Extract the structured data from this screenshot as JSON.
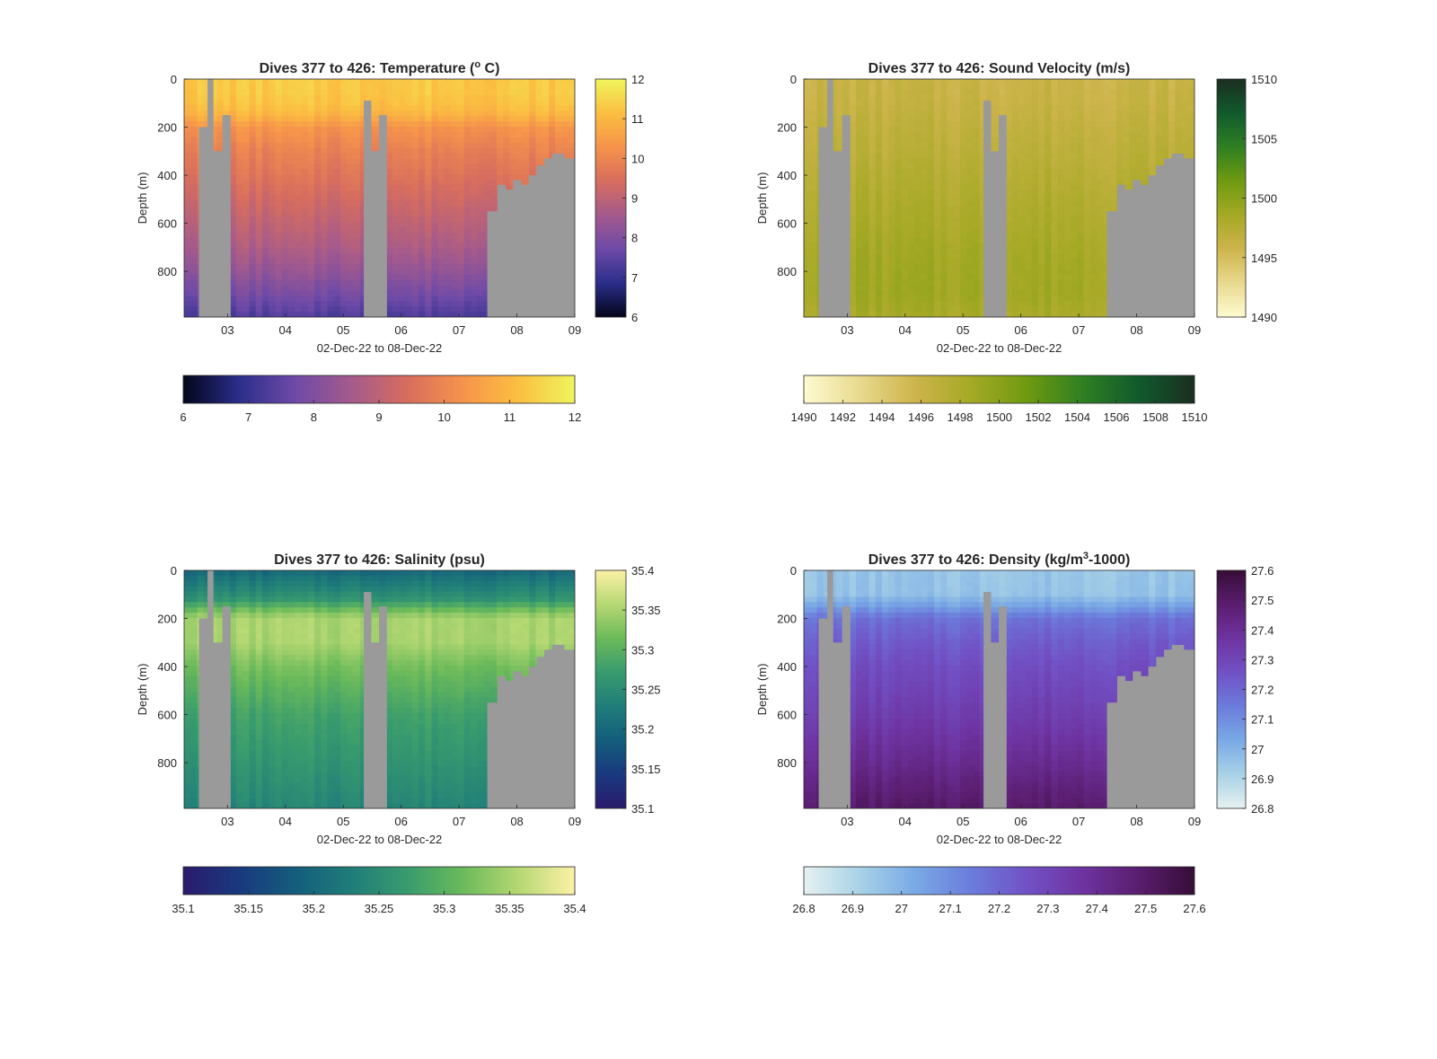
{
  "figure": {
    "background": "#ffffff",
    "mask_color": "#9a9a9a"
  },
  "chart_data": [
    {
      "type": "heatmap",
      "title": "Dives 377 to 426: Temperature (° C)",
      "title_parts": [
        "Dives 377 to 426: Temperature (",
        "o",
        " C)"
      ],
      "xlabel": "02-Dec-22 to 08-Dec-22",
      "ylabel": "Depth (m)",
      "xticks": [
        "03",
        "04",
        "05",
        "06",
        "07",
        "08",
        "09"
      ],
      "xlim_days": [
        2.25,
        9.0
      ],
      "yticks": [
        "0",
        "200",
        "400",
        "600",
        "800"
      ],
      "ylim": [
        0,
        990
      ],
      "y_reversed": true,
      "colormap": "thermal",
      "colormap_stops": [
        "#03051a",
        "#2b2e8a",
        "#6e4aa8",
        "#a45a8c",
        "#d76d5e",
        "#f6934b",
        "#fbbf41",
        "#eff55c"
      ],
      "clim": [
        6,
        12
      ],
      "colorbar_ticks": [
        "6",
        "7",
        "8",
        "9",
        "10",
        "11",
        "12"
      ],
      "horizontal_ticks": [
        "6",
        "7",
        "8",
        "9",
        "10",
        "11",
        "12"
      ],
      "profile": {
        "depths": [
          0,
          50,
          100,
          140,
          170,
          200,
          300,
          400,
          500,
          600,
          700,
          800,
          900,
          990
        ],
        "values": [
          11.3,
          11.3,
          11.2,
          11.0,
          10.7,
          10.3,
          9.9,
          9.6,
          9.3,
          9.0,
          8.7,
          8.3,
          7.8,
          7.3
        ]
      }
    },
    {
      "type": "heatmap",
      "title": "Dives 377 to 426: Sound Velocity (m/s)",
      "xlabel": "02-Dec-22 to 08-Dec-22",
      "ylabel": "Depth (m)",
      "xticks": [
        "03",
        "04",
        "05",
        "06",
        "07",
        "08",
        "09"
      ],
      "xlim_days": [
        2.25,
        9.0
      ],
      "yticks": [
        "0",
        "200",
        "400",
        "600",
        "800"
      ],
      "ylim": [
        0,
        990
      ],
      "y_reversed": true,
      "colormap": "speed",
      "colormap_stops": [
        "#fefbd1",
        "#e8d98e",
        "#cdb44b",
        "#a5a925",
        "#6e9a10",
        "#2f7f22",
        "#115a2d",
        "#1a2e20"
      ],
      "clim": [
        1490,
        1510
      ],
      "colorbar_ticks": [
        "1490",
        "1495",
        "1500",
        "1505",
        "1510"
      ],
      "horizontal_ticks": [
        "1490",
        "1492",
        "1494",
        "1496",
        "1498",
        "1500",
        "1502",
        "1504",
        "1506",
        "1508",
        "1510"
      ],
      "profile": {
        "depths": [
          0,
          100,
          200,
          300,
          400,
          500,
          600,
          700,
          800,
          900,
          990
        ],
        "values": [
          1496.0,
          1496.2,
          1496.6,
          1497.0,
          1497.4,
          1497.8,
          1498.1,
          1498.5,
          1498.7,
          1498.8,
          1498.2
        ]
      }
    },
    {
      "type": "heatmap",
      "title": "Dives 377 to 426: Salinity (psu)",
      "xlabel": "02-Dec-22 to 08-Dec-22",
      "ylabel": "Depth (m)",
      "xticks": [
        "03",
        "04",
        "05",
        "06",
        "07",
        "08",
        "09"
      ],
      "xlim_days": [
        2.25,
        9.0
      ],
      "yticks": [
        "0",
        "200",
        "400",
        "600",
        "800"
      ],
      "ylim": [
        0,
        990
      ],
      "y_reversed": true,
      "colormap": "haline",
      "colormap_stops": [
        "#2a1a6c",
        "#19397e",
        "#145d7c",
        "#1f7d79",
        "#389b6e",
        "#6bba5a",
        "#b6d873",
        "#fdf1a6"
      ],
      "clim": [
        35.1,
        35.4
      ],
      "colorbar_ticks": [
        "35.1",
        "35.15",
        "35.2",
        "35.25",
        "35.3",
        "35.35",
        "35.4"
      ],
      "horizontal_ticks": [
        "35.1",
        "35.15",
        "35.2",
        "35.25",
        "35.3",
        "35.35",
        "35.4"
      ],
      "profile": {
        "depths": [
          0,
          60,
          120,
          160,
          200,
          300,
          400,
          500,
          600,
          700,
          800,
          900,
          990
        ],
        "values": [
          35.2,
          35.23,
          35.26,
          35.31,
          35.35,
          35.35,
          35.32,
          35.3,
          35.28,
          35.27,
          35.26,
          35.25,
          35.24
        ]
      }
    },
    {
      "type": "heatmap",
      "title": "Dives 377 to 426: Density (kg/m³-1000)",
      "title_parts": [
        "Dives 377 to 426: Density (kg/m",
        "3",
        "-1000)"
      ],
      "xlabel": "02-Dec-22 to 08-Dec-22",
      "ylabel": "Depth (m)",
      "xticks": [
        "03",
        "04",
        "05",
        "06",
        "07",
        "08",
        "09"
      ],
      "xlim_days": [
        2.25,
        9.0
      ],
      "yticks": [
        "0",
        "200",
        "400",
        "600",
        "800"
      ],
      "ylim": [
        0,
        990
      ],
      "y_reversed": true,
      "colormap": "dense",
      "colormap_stops": [
        "#e6f1f1",
        "#a8d2e6",
        "#79a9e5",
        "#6b7cdc",
        "#7151c5",
        "#6e33a0",
        "#5a1d6f",
        "#360d37"
      ],
      "clim": [
        26.8,
        27.6
      ],
      "colorbar_ticks": [
        "26.8",
        "26.9",
        "27",
        "27.1",
        "27.2",
        "27.3",
        "27.4",
        "27.5",
        "27.6"
      ],
      "horizontal_ticks": [
        "26.8",
        "26.9",
        "27",
        "27.1",
        "27.2",
        "27.3",
        "27.4",
        "27.5",
        "27.6"
      ],
      "profile": {
        "depths": [
          0,
          100,
          150,
          200,
          300,
          400,
          500,
          600,
          700,
          800,
          900,
          990
        ],
        "values": [
          26.95,
          26.96,
          27.05,
          27.17,
          27.23,
          27.27,
          27.3,
          27.33,
          27.37,
          27.41,
          27.46,
          27.5
        ]
      }
    }
  ]
}
